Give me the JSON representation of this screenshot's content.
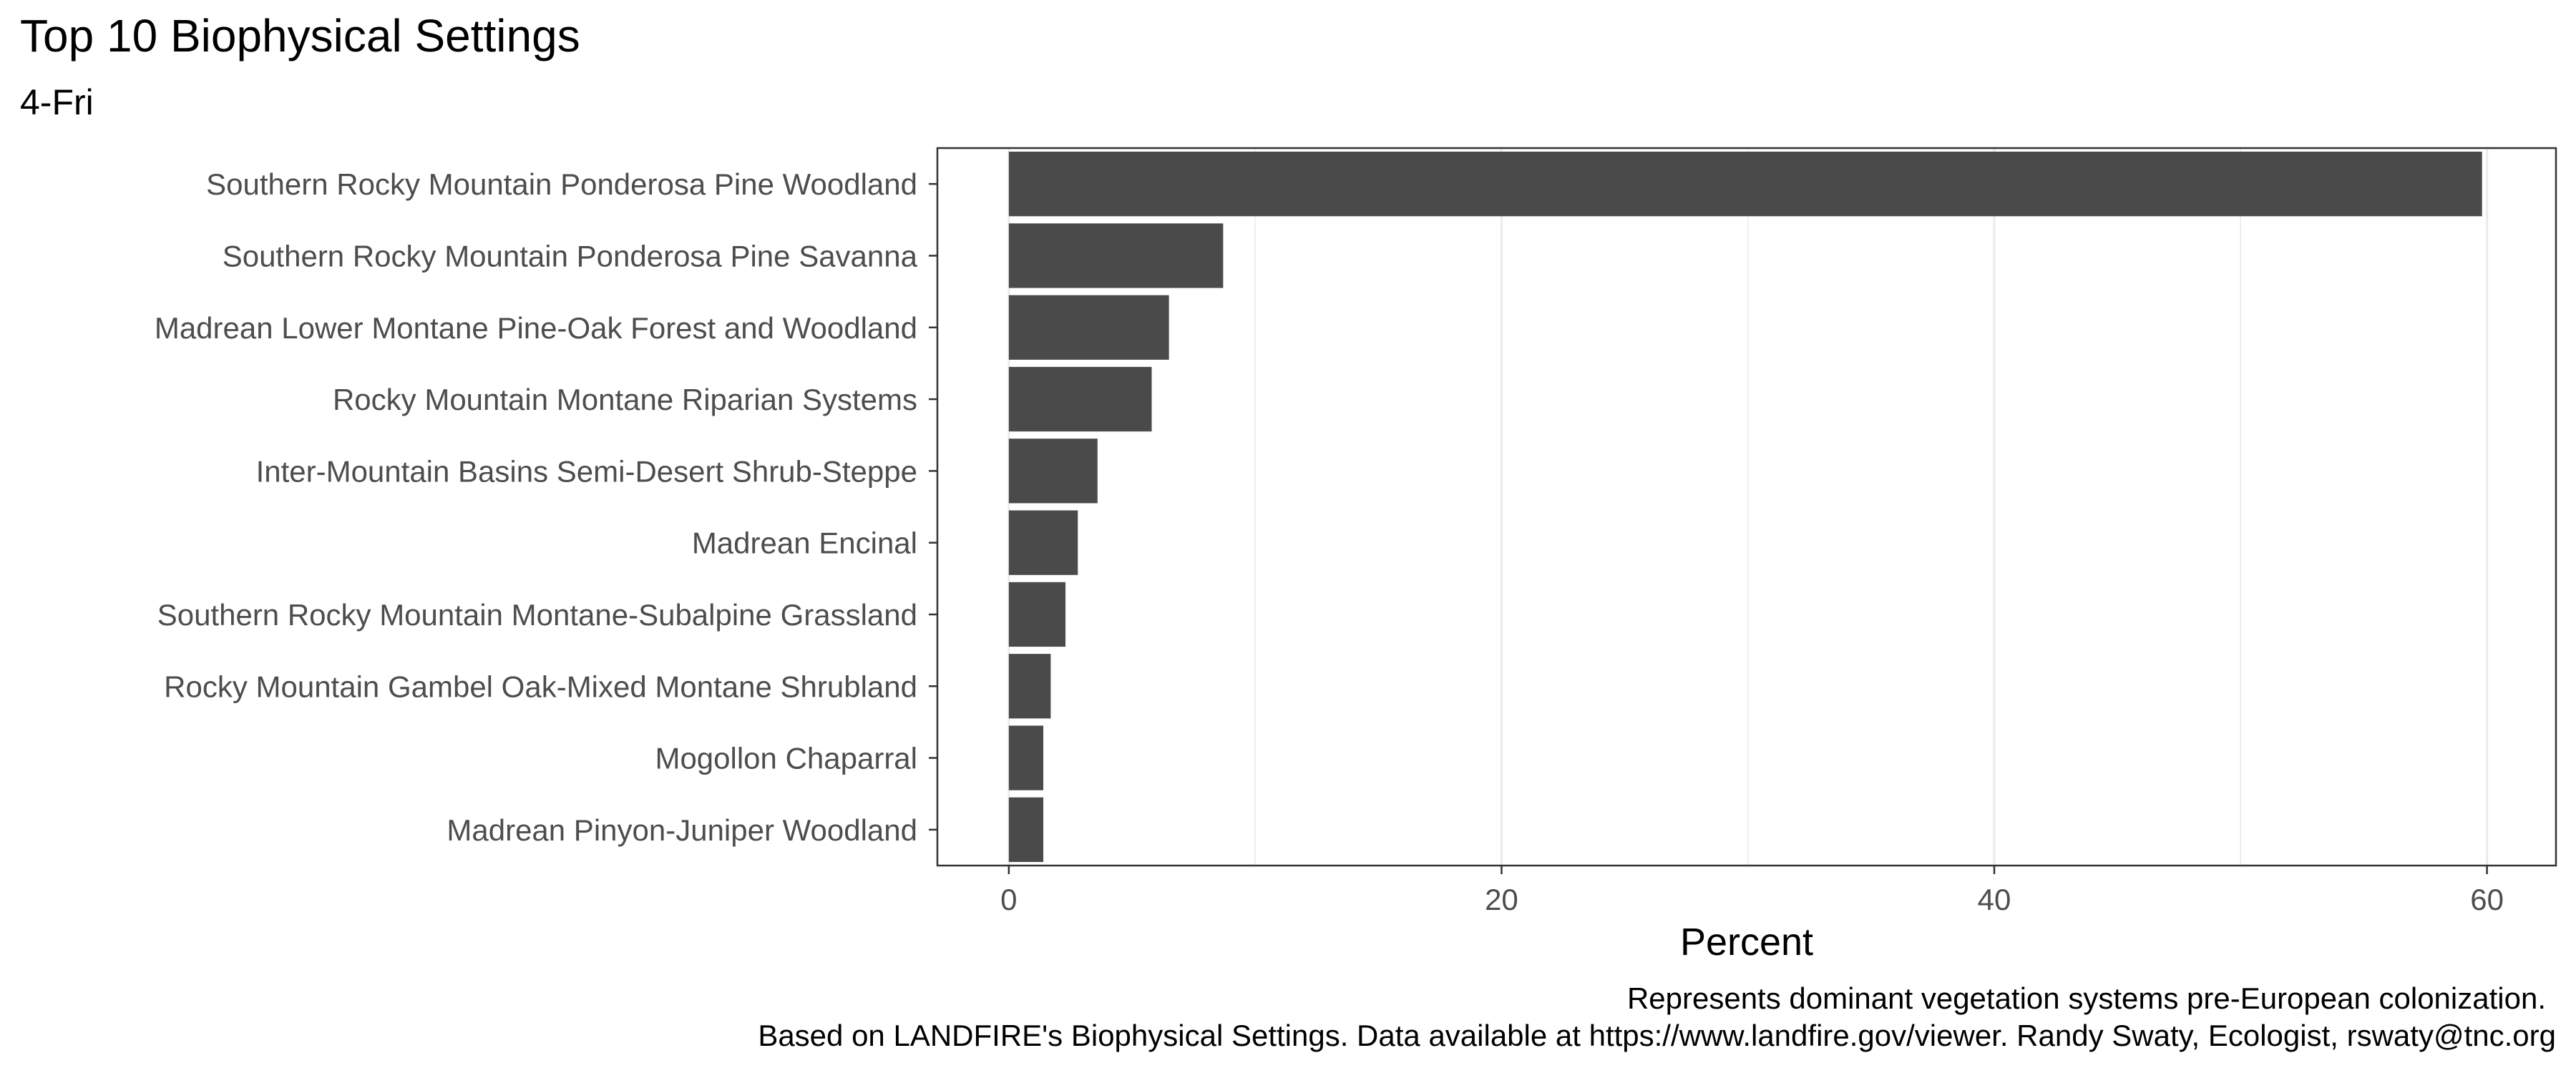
{
  "chart_data": {
    "type": "bar",
    "orientation": "horizontal",
    "title": "Top 10 Biophysical Settings",
    "subtitle": "4-Fri",
    "xlabel": "Percent",
    "ylabel": "",
    "categories": [
      "Southern Rocky Mountain Ponderosa Pine Woodland",
      "Southern Rocky Mountain Ponderosa Pine Savanna",
      "Madrean Lower Montane Pine-Oak Forest and Woodland",
      "Rocky Mountain Montane Riparian Systems",
      "Inter-Mountain Basins Semi-Desert Shrub-Steppe",
      "Madrean Encinal",
      "Southern Rocky Mountain Montane-Subalpine Grassland",
      "Rocky Mountain Gambel Oak-Mixed Montane Shrubland",
      "Mogollon Chaparral",
      "Madrean Pinyon-Juniper Woodland"
    ],
    "values": [
      59.8,
      8.7,
      6.5,
      5.8,
      3.6,
      2.8,
      2.3,
      1.7,
      1.4,
      1.4
    ],
    "xlim": [
      -2.9,
      62.8
    ],
    "xticks": [
      0,
      20,
      40,
      60
    ],
    "xtick_labels": [
      "0",
      "20",
      "40",
      "60"
    ],
    "grid": true,
    "bar_color": "#4a4a4a",
    "caption_lines": [
      "Represents dominant vegetation systems pre-European colonization.",
      "Based on LANDFIRE's Biophysical Settings.  Data available at https://www.landfire.gov/viewer. Randy Swaty, Ecologist, rswaty@tnc.org"
    ]
  }
}
